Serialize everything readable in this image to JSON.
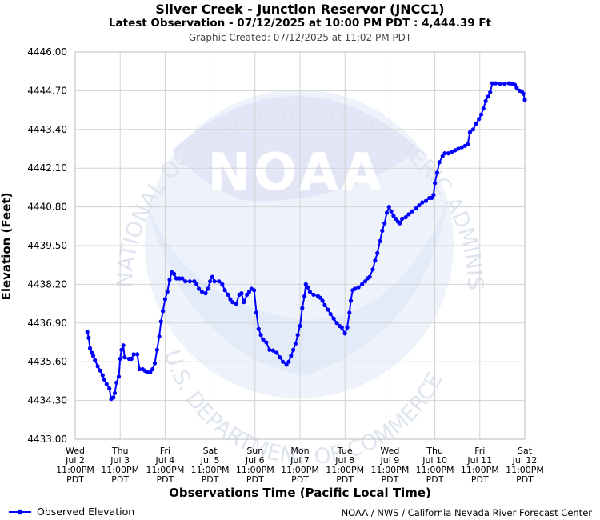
{
  "header": {
    "title": "Silver Creek - Junction Reservor (JNCC1)",
    "subtitle": "Latest Observation - 07/12/2025 at 10:00 PM PDT : 4,444.39 Ft",
    "created": "Graphic Created: 07/12/2025 at 11:02 PM PDT"
  },
  "watermark": {
    "logo_text": "NOAA",
    "ring_top": "NATIONAL OCEANIC AND ATMOSPHERIC ADMINISTRATION",
    "ring_bottom": "U.S. DEPARTMENT OF COMMERCE"
  },
  "legend": {
    "label": "Observed Elevation"
  },
  "credit": "NOAA / NWS / California Nevada River Forecast Center",
  "colors": {
    "series": "#0000ff",
    "grid": "#d3d3d3",
    "watermark": "#e8eef8"
  },
  "chart_data": {
    "type": "line",
    "xlabel": "Observations Time (Pacific Local Time)",
    "ylabel": "Elevation (Feet)",
    "ylim": [
      4433.0,
      4446.0
    ],
    "yticks": [
      "4433.00",
      "4434.30",
      "4435.60",
      "4436.90",
      "4438.20",
      "4439.50",
      "4440.80",
      "4442.10",
      "4443.40",
      "4444.70",
      "4446.00"
    ],
    "xlim_days": [
      0,
      10
    ],
    "xticks": [
      {
        "day": "Wed",
        "date": "Jul 2",
        "time": "11:00PM",
        "tz": "PDT"
      },
      {
        "day": "Thu",
        "date": "Jul 3",
        "time": "11:00PM",
        "tz": "PDT"
      },
      {
        "day": "Fri",
        "date": "Jul 4",
        "time": "11:00PM",
        "tz": "PDT"
      },
      {
        "day": "Sat",
        "date": "Jul 5",
        "time": "11:00PM",
        "tz": "PDT"
      },
      {
        "day": "Sun",
        "date": "Jul 6",
        "time": "11:00PM",
        "tz": "PDT"
      },
      {
        "day": "Mon",
        "date": "Jul 7",
        "time": "11:00PM",
        "tz": "PDT"
      },
      {
        "day": "Tue",
        "date": "Jul 8",
        "time": "11:00PM",
        "tz": "PDT"
      },
      {
        "day": "Wed",
        "date": "Jul 9",
        "time": "11:00PM",
        "tz": "PDT"
      },
      {
        "day": "Thu",
        "date": "Jul 10",
        "time": "11:00PM",
        "tz": "PDT"
      },
      {
        "day": "Fri",
        "date": "Jul 11",
        "time": "11:00PM",
        "tz": "PDT"
      },
      {
        "day": "Sat",
        "date": "Jul 12",
        "time": "11:00PM",
        "tz": "PDT"
      }
    ],
    "grid": true,
    "legend_position": "bottom-left",
    "series": [
      {
        "name": "Observed Elevation",
        "points": [
          [
            0.27,
            4436.6
          ],
          [
            0.3,
            4436.4
          ],
          [
            0.33,
            4436.05
          ],
          [
            0.37,
            4435.9
          ],
          [
            0.4,
            4435.8
          ],
          [
            0.44,
            4435.65
          ],
          [
            0.5,
            4435.45
          ],
          [
            0.56,
            4435.3
          ],
          [
            0.61,
            4435.15
          ],
          [
            0.65,
            4435.0
          ],
          [
            0.7,
            4434.85
          ],
          [
            0.76,
            4434.7
          ],
          [
            0.8,
            4434.35
          ],
          [
            0.85,
            4434.4
          ],
          [
            0.88,
            4434.55
          ],
          [
            0.92,
            4434.9
          ],
          [
            0.97,
            4435.1
          ],
          [
            1.0,
            4435.7
          ],
          [
            1.03,
            4436.0
          ],
          [
            1.07,
            4436.15
          ],
          [
            1.1,
            4435.75
          ],
          [
            1.2,
            4435.7
          ],
          [
            1.25,
            4435.7
          ],
          [
            1.3,
            4435.85
          ],
          [
            1.38,
            4435.85
          ],
          [
            1.43,
            4435.35
          ],
          [
            1.5,
            4435.35
          ],
          [
            1.55,
            4435.3
          ],
          [
            1.6,
            4435.25
          ],
          [
            1.67,
            4435.25
          ],
          [
            1.72,
            4435.35
          ],
          [
            1.77,
            4435.55
          ],
          [
            1.82,
            4436.0
          ],
          [
            1.87,
            4436.45
          ],
          [
            1.91,
            4436.95
          ],
          [
            1.95,
            4437.3
          ],
          [
            2.0,
            4437.7
          ],
          [
            2.05,
            4437.95
          ],
          [
            2.1,
            4438.35
          ],
          [
            2.15,
            4438.6
          ],
          [
            2.2,
            4438.55
          ],
          [
            2.25,
            4438.4
          ],
          [
            2.32,
            4438.4
          ],
          [
            2.38,
            4438.4
          ],
          [
            2.45,
            4438.3
          ],
          [
            2.55,
            4438.3
          ],
          [
            2.65,
            4438.3
          ],
          [
            2.7,
            4438.2
          ],
          [
            2.75,
            4438.05
          ],
          [
            2.82,
            4437.95
          ],
          [
            2.9,
            4437.9
          ],
          [
            2.95,
            4438.05
          ],
          [
            3.0,
            4438.3
          ],
          [
            3.05,
            4438.45
          ],
          [
            3.1,
            4438.3
          ],
          [
            3.2,
            4438.3
          ],
          [
            3.27,
            4438.2
          ],
          [
            3.33,
            4438.0
          ],
          [
            3.4,
            4437.85
          ],
          [
            3.45,
            4437.7
          ],
          [
            3.5,
            4437.6
          ],
          [
            3.58,
            4437.55
          ],
          [
            3.65,
            4437.85
          ],
          [
            3.7,
            4437.9
          ],
          [
            3.75,
            4437.6
          ],
          [
            3.82,
            4437.85
          ],
          [
            3.87,
            4437.95
          ],
          [
            3.92,
            4438.05
          ],
          [
            3.98,
            4438.0
          ],
          [
            4.03,
            4437.25
          ],
          [
            4.08,
            4436.7
          ],
          [
            4.13,
            4436.5
          ],
          [
            4.18,
            4436.35
          ],
          [
            4.25,
            4436.25
          ],
          [
            4.32,
            4436.0
          ],
          [
            4.4,
            4435.98
          ],
          [
            4.48,
            4435.9
          ],
          [
            4.55,
            4435.75
          ],
          [
            4.62,
            4435.6
          ],
          [
            4.7,
            4435.5
          ],
          [
            4.75,
            4435.6
          ],
          [
            4.8,
            4435.8
          ],
          [
            4.85,
            4436.0
          ],
          [
            4.9,
            4436.2
          ],
          [
            4.95,
            4436.5
          ],
          [
            5.0,
            4436.8
          ],
          [
            5.05,
            4437.4
          ],
          [
            5.1,
            4437.8
          ],
          [
            5.13,
            4438.2
          ],
          [
            5.17,
            4438.1
          ],
          [
            5.22,
            4437.95
          ],
          [
            5.3,
            4437.85
          ],
          [
            5.4,
            4437.8
          ],
          [
            5.45,
            4437.75
          ],
          [
            5.5,
            4437.65
          ],
          [
            5.55,
            4437.5
          ],
          [
            5.62,
            4437.35
          ],
          [
            5.68,
            4437.2
          ],
          [
            5.75,
            4437.05
          ],
          [
            5.82,
            4436.9
          ],
          [
            5.88,
            4436.8
          ],
          [
            5.93,
            4436.75
          ],
          [
            6.0,
            4436.55
          ],
          [
            6.05,
            4436.75
          ],
          [
            6.1,
            4437.25
          ],
          [
            6.13,
            4437.65
          ],
          [
            6.17,
            4438.0
          ],
          [
            6.22,
            4438.05
          ],
          [
            6.3,
            4438.1
          ],
          [
            6.38,
            4438.2
          ],
          [
            6.45,
            4438.3
          ],
          [
            6.5,
            4438.4
          ],
          [
            6.55,
            4438.45
          ],
          [
            6.62,
            4438.7
          ],
          [
            6.67,
            4439.0
          ],
          [
            6.72,
            4439.25
          ],
          [
            6.78,
            4439.65
          ],
          [
            6.83,
            4440.0
          ],
          [
            6.88,
            4440.25
          ],
          [
            6.93,
            4440.6
          ],
          [
            6.98,
            4440.8
          ],
          [
            7.03,
            4440.65
          ],
          [
            7.08,
            4440.5
          ],
          [
            7.13,
            4440.4
          ],
          [
            7.18,
            4440.3
          ],
          [
            7.22,
            4440.25
          ],
          [
            7.27,
            4440.4
          ],
          [
            7.35,
            4440.45
          ],
          [
            7.42,
            4440.55
          ],
          [
            7.5,
            4440.65
          ],
          [
            7.58,
            4440.75
          ],
          [
            7.65,
            4440.85
          ],
          [
            7.72,
            4440.95
          ],
          [
            7.8,
            4441.0
          ],
          [
            7.88,
            4441.1
          ],
          [
            7.93,
            4441.1
          ],
          [
            7.97,
            4441.2
          ],
          [
            8.0,
            4441.6
          ],
          [
            8.05,
            4441.95
          ],
          [
            8.1,
            4442.3
          ],
          [
            8.17,
            4442.5
          ],
          [
            8.22,
            4442.6
          ],
          [
            8.3,
            4442.6
          ],
          [
            8.38,
            4442.65
          ],
          [
            8.45,
            4442.7
          ],
          [
            8.52,
            4442.75
          ],
          [
            8.6,
            4442.8
          ],
          [
            8.67,
            4442.85
          ],
          [
            8.73,
            4442.9
          ],
          [
            8.78,
            4443.3
          ],
          [
            8.85,
            4443.4
          ],
          [
            8.92,
            4443.6
          ],
          [
            8.98,
            4443.75
          ],
          [
            9.03,
            4443.9
          ],
          [
            9.08,
            4444.1
          ],
          [
            9.13,
            4444.35
          ],
          [
            9.18,
            4444.5
          ],
          [
            9.23,
            4444.65
          ],
          [
            9.28,
            4444.95
          ],
          [
            9.35,
            4444.95
          ],
          [
            9.45,
            4444.93
          ],
          [
            9.55,
            4444.93
          ],
          [
            9.65,
            4444.95
          ],
          [
            9.72,
            4444.93
          ],
          [
            9.78,
            4444.9
          ],
          [
            9.82,
            4444.8
          ],
          [
            9.88,
            4444.7
          ],
          [
            9.93,
            4444.68
          ],
          [
            9.97,
            4444.6
          ],
          [
            10.0,
            4444.39
          ]
        ]
      }
    ]
  }
}
